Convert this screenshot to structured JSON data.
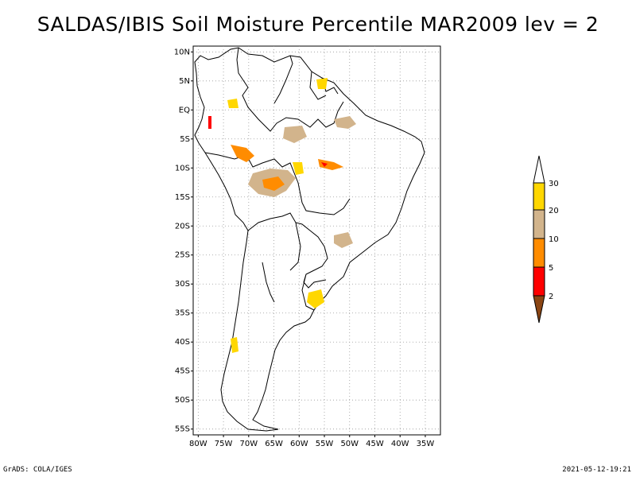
{
  "title": "SALDAS/IBIS Soil Moisture Percentile MAR2009 lev = 2",
  "footer": {
    "left": "GrADS: COLA/IGES",
    "right": "2021-05-12-19:21"
  },
  "map": {
    "region": "South America",
    "lon_range": [
      -81,
      -32
    ],
    "lat_range": [
      -56,
      11
    ],
    "lat_labels": [
      "10N",
      "5N",
      "EQ",
      "5S",
      "10S",
      "15S",
      "20S",
      "25S",
      "30S",
      "35S",
      "40S",
      "45S",
      "50S",
      "55S"
    ],
    "lon_labels": [
      "80W",
      "75W",
      "70W",
      "65W",
      "60W",
      "55W",
      "50W",
      "45W",
      "40W",
      "35W"
    ],
    "grid": "dotted"
  },
  "legend": {
    "labels": [
      "30",
      "20",
      "10",
      "5",
      "2"
    ],
    "colors": {
      "above": "#ffffff",
      "c20_30": "#ffd700",
      "c10_20": "#d2b48c",
      "c5_10": "#ff8c00",
      "c2_5": "#ff0000",
      "below": "#8b4513"
    }
  }
}
